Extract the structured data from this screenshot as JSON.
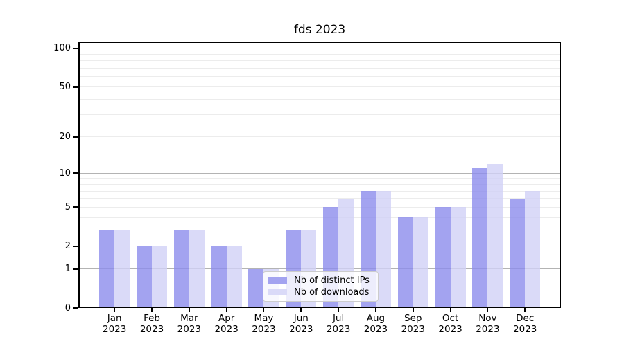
{
  "title": "fds 2023",
  "colors": {
    "bar_distinct_ips": "#a3a3f0",
    "bar_downloads": "#dadaf8",
    "bar_distinct_ips_fill": "rgba(140,140,236,0.8)",
    "bar_downloads_fill": "rgba(209,209,246,0.8)",
    "major_gridline": "#b3b3b3",
    "minor_gridline": "#ececec",
    "spine": "#000000",
    "legend_border": "#cccccc",
    "legend_background": "rgba(255,255,255,0.8)",
    "text": "#000000"
  },
  "legend": {
    "items": [
      {
        "label": "Nb of distinct IPs",
        "color_key": "bar_distinct_ips"
      },
      {
        "label": "Nb of downloads",
        "color_key": "bar_downloads"
      }
    ],
    "position": "lower center"
  },
  "y_axis": {
    "tick_labels": [
      "0",
      "1",
      "2",
      "5",
      "10",
      "20",
      "50",
      "100"
    ],
    "tick_values": [
      0,
      1,
      2,
      5,
      10,
      20,
      50,
      100
    ],
    "major_gridline_values": [
      1,
      10,
      100
    ],
    "minor_gridline_values": [
      2,
      3,
      4,
      5,
      6,
      7,
      8,
      9,
      20,
      30,
      40,
      50,
      60,
      70,
      80,
      90
    ],
    "scale": "log10(1+v)"
  },
  "x_axis": {
    "months": [
      "Jan",
      "Feb",
      "Mar",
      "Apr",
      "May",
      "Jun",
      "Jul",
      "Aug",
      "Sep",
      "Oct",
      "Nov",
      "Dec"
    ],
    "year": "2023"
  },
  "chart_data": {
    "type": "bar",
    "title": "fds 2023",
    "categories": [
      "Jan 2023",
      "Feb 2023",
      "Mar 2023",
      "Apr 2023",
      "May 2023",
      "Jun 2023",
      "Jul 2023",
      "Aug 2023",
      "Sep 2023",
      "Oct 2023",
      "Nov 2023",
      "Dec 2023"
    ],
    "series": [
      {
        "name": "Nb of distinct IPs",
        "values": [
          3,
          2,
          3,
          2,
          1,
          3,
          5,
          7,
          4,
          5,
          11,
          6
        ]
      },
      {
        "name": "Nb of downloads",
        "values": [
          3,
          2,
          3,
          2,
          1,
          3,
          6,
          7,
          4,
          5,
          12,
          7
        ]
      }
    ],
    "xlabel": "",
    "ylabel": "",
    "yscale": "log1p",
    "y_ticks": [
      0,
      1,
      2,
      5,
      10,
      20,
      50,
      100
    ],
    "ylim": [
      0,
      113
    ],
    "grid": true,
    "legend_position": "lower center"
  }
}
